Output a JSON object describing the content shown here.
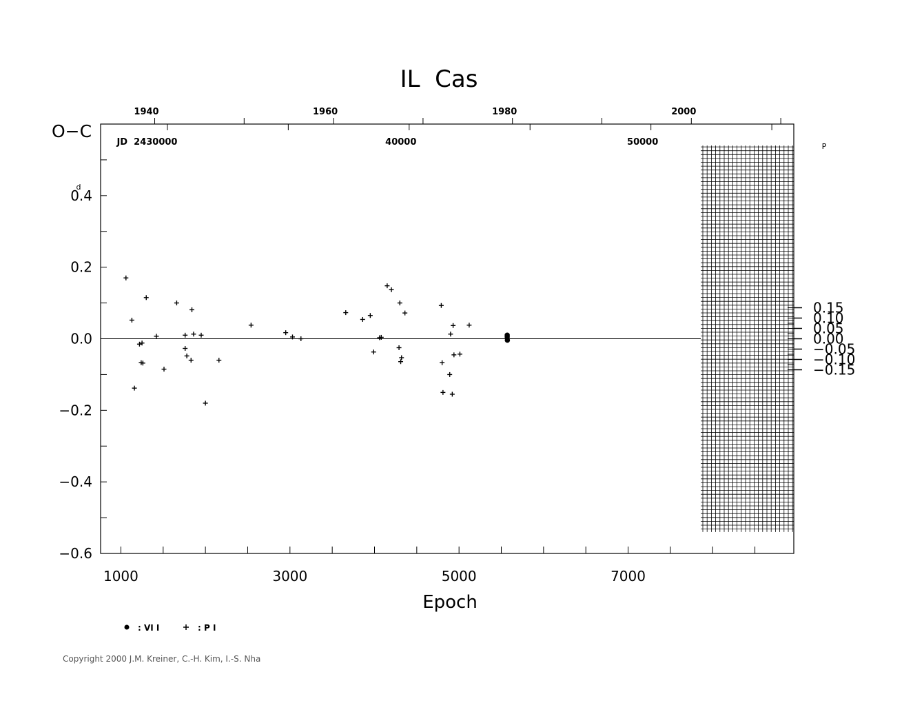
{
  "chart_data": {
    "type": "scatter",
    "title": "IL  Cas",
    "xlabel": "Epoch",
    "ylabel": "O−C",
    "y_unit_label": "d",
    "right_unit_label": "P",
    "x_ticks": [
      1000,
      3000,
      5000,
      7000
    ],
    "x_tick_labels": [
      "1000",
      "3000",
      "5000",
      "7000"
    ],
    "xlim": [
      760,
      8960
    ],
    "ylim": [
      -0.6,
      0.6
    ],
    "y_ticks": [
      0.4,
      0.2,
      0.0,
      -0.2,
      -0.4,
      -0.6
    ],
    "y_tick_labels": [
      "0.4",
      "0.2",
      "0.0",
      "−0.2",
      "−0.4",
      "−0.6"
    ],
    "right_axis": {
      "period_days": 0.578,
      "ticks": [
        0.15,
        0.1,
        0.05,
        0.0,
        -0.05,
        -0.1,
        -0.15
      ],
      "tick_labels": [
        "0.15",
        "0.10",
        "0.05",
        "0.00",
        "−0.05",
        "−0.10",
        "−0.15"
      ]
    },
    "top_axis_years": {
      "ticks": [
        {
          "label": "1940",
          "epoch": 1400
        },
        {
          "label": "1960",
          "epoch": 3516
        },
        {
          "label": "1980",
          "epoch": 5636
        },
        {
          "label": "2000",
          "epoch": 7756
        }
      ]
    },
    "jd_labels": [
      {
        "label": "JD  2430000",
        "epoch": 1310
      },
      {
        "label": "40000",
        "epoch": 4410
      },
      {
        "label": "50000",
        "epoch": 7270
      }
    ],
    "future_hatch_from_epoch": 7860,
    "series": [
      {
        "name": "VI",
        "legend_label": ": VI I",
        "marker": "circle",
        "points": [
          [
            5570,
            0.01
          ],
          [
            5570,
            0.005
          ],
          [
            5572,
            -0.004
          ]
        ]
      },
      {
        "name": "PI",
        "legend_label": ": P I",
        "marker": "plus",
        "points": [
          [
            1060,
            0.17
          ],
          [
            1130,
            0.052
          ],
          [
            1160,
            -0.138
          ],
          [
            1220,
            -0.015
          ],
          [
            1240,
            -0.067
          ],
          [
            1250,
            -0.012
          ],
          [
            1260,
            -0.068
          ],
          [
            1300,
            0.115
          ],
          [
            1420,
            0.007
          ],
          [
            1510,
            -0.085
          ],
          [
            1660,
            0.1
          ],
          [
            1760,
            0.01
          ],
          [
            1760,
            -0.027
          ],
          [
            1780,
            -0.048
          ],
          [
            1830,
            -0.06
          ],
          [
            1840,
            0.081
          ],
          [
            1860,
            0.013
          ],
          [
            1950,
            0.01
          ],
          [
            2000,
            -0.18
          ],
          [
            2160,
            -0.06
          ],
          [
            2540,
            0.038
          ],
          [
            2950,
            0.017
          ],
          [
            3030,
            0.005
          ],
          [
            3130,
            0.0
          ],
          [
            3660,
            0.073
          ],
          [
            3860,
            0.054
          ],
          [
            3950,
            0.065
          ],
          [
            3990,
            -0.037
          ],
          [
            4060,
            0.003
          ],
          [
            4080,
            0.004
          ],
          [
            4150,
            0.148
          ],
          [
            4200,
            0.137
          ],
          [
            4290,
            -0.025
          ],
          [
            4300,
            0.1
          ],
          [
            4310,
            -0.064
          ],
          [
            4320,
            -0.053
          ],
          [
            4360,
            0.072
          ],
          [
            4790,
            0.093
          ],
          [
            4800,
            -0.067
          ],
          [
            4810,
            -0.15
          ],
          [
            4890,
            -0.1
          ],
          [
            4900,
            0.013
          ],
          [
            4920,
            -0.155
          ],
          [
            4930,
            0.037
          ],
          [
            4940,
            -0.045
          ],
          [
            5010,
            -0.043
          ],
          [
            5120,
            0.038
          ]
        ]
      }
    ]
  },
  "copyright": "Copyright 2000 J.M. Kreiner, C.-H. Kim, I.-S. Nha"
}
